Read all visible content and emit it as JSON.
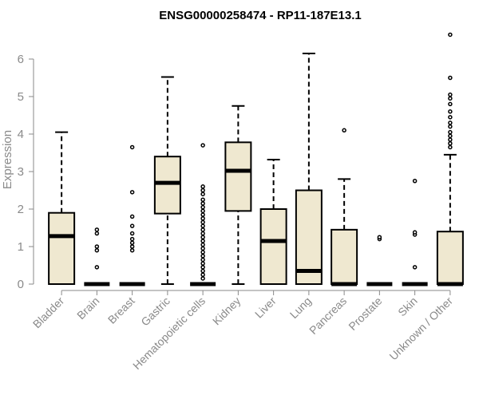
{
  "chart_data": {
    "type": "boxplot",
    "title": "ENSG00000258474 - RP11-187E13.1",
    "xlabel": "",
    "ylabel": "Expression",
    "ylim": [
      0,
      6.8
    ],
    "yticks": [
      0,
      1,
      2,
      3,
      4,
      5,
      6
    ],
    "box_color": "#efe8d0",
    "categories": [
      "Bladder",
      "Brain",
      "Breast",
      "Gastric",
      "Hematopoietic cells",
      "Kidney",
      "Liver",
      "Lung",
      "Pancreas",
      "Prostate",
      "Skin",
      "Unknown / Other"
    ],
    "boxes": [
      {
        "min": 0,
        "q1": 0,
        "median": 1.28,
        "q3": 1.9,
        "max": 4.05,
        "outliers": []
      },
      {
        "min": 0,
        "q1": 0,
        "median": 0,
        "q3": 0,
        "max": 0,
        "outliers": [
          0.45,
          0.9,
          1.0,
          1.35,
          1.45
        ]
      },
      {
        "min": 0,
        "q1": 0,
        "median": 0,
        "q3": 0,
        "max": 0,
        "outliers": [
          0.9,
          1.0,
          1.1,
          1.2,
          1.35,
          1.55,
          1.8,
          2.45,
          3.65
        ]
      },
      {
        "min": 0,
        "q1": 1.88,
        "median": 2.7,
        "q3": 3.4,
        "max": 5.52,
        "outliers": []
      },
      {
        "min": 0,
        "q1": 0,
        "median": 0,
        "q3": 0,
        "max": 0,
        "outliers": [
          0.15,
          0.25,
          0.35,
          0.45,
          0.55,
          0.65,
          0.75,
          0.85,
          0.95,
          1.05,
          1.15,
          1.25,
          1.35,
          1.45,
          1.55,
          1.65,
          1.75,
          1.85,
          1.95,
          2.05,
          2.15,
          2.25,
          2.4,
          2.5,
          2.6,
          3.7
        ]
      },
      {
        "min": 0,
        "q1": 1.95,
        "median": 3.02,
        "q3": 3.78,
        "max": 4.75,
        "outliers": []
      },
      {
        "min": 0,
        "q1": 0,
        "median": 1.15,
        "q3": 2.0,
        "max": 3.32,
        "outliers": []
      },
      {
        "min": 0,
        "q1": 0,
        "median": 0.35,
        "q3": 2.5,
        "max": 6.15,
        "outliers": []
      },
      {
        "min": 0,
        "q1": 0,
        "median": 0,
        "q3": 1.45,
        "max": 2.8,
        "outliers": [
          4.1
        ]
      },
      {
        "min": 0,
        "q1": 0,
        "median": 0,
        "q3": 0,
        "max": 0,
        "outliers": [
          1.2,
          1.25
        ]
      },
      {
        "min": 0,
        "q1": 0,
        "median": 0,
        "q3": 0,
        "max": 0,
        "outliers": [
          0.45,
          1.32,
          1.38,
          2.75
        ]
      },
      {
        "min": 0,
        "q1": 0,
        "median": 0,
        "q3": 1.4,
        "max": 3.45,
        "outliers": [
          3.65,
          3.75,
          3.85,
          3.95,
          4.05,
          4.2,
          4.3,
          4.45,
          4.6,
          4.8,
          4.95,
          5.05,
          5.5,
          6.65
        ]
      }
    ]
  }
}
